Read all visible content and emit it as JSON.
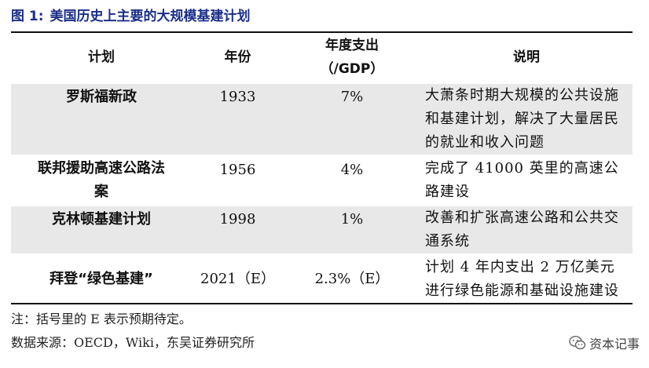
{
  "figure": {
    "label": "图 1:",
    "title": "美国历史上主要的大规模基建计划"
  },
  "table": {
    "headers": {
      "plan": "计划",
      "year": "年份",
      "expenditure_line1": "年度支出",
      "expenditure_line2": "（/GDP）",
      "description": "说明"
    },
    "rows": [
      {
        "plan": "罗斯福新政",
        "year": "1933",
        "expenditure": "7%",
        "description": "大萧条时期大规模的公共设施和基建计划，解决了大量居民的就业和收入问题"
      },
      {
        "plan": "联邦援助高速公路法案",
        "year": "1956",
        "expenditure": "4%",
        "description": "完成了 41000 英里的高速公路建设"
      },
      {
        "plan": "克林顿基建计划",
        "year": "1998",
        "expenditure": "1%",
        "description": "改善和扩张高速公路和公共交通系统"
      },
      {
        "plan": "拜登“绿色基建”",
        "year": "2021（E）",
        "expenditure": "2.3%（E）",
        "description": "计划 4 年内支出 2 万亿美元进行绿色能源和基础设施建设"
      }
    ]
  },
  "notes": {
    "note": "注：括号里的 E 表示预期待定。",
    "source": "数据来源：OECD，Wiki，东吴证券研究所"
  },
  "watermark": {
    "icon": "wechat-icon",
    "text": "资本记事"
  }
}
